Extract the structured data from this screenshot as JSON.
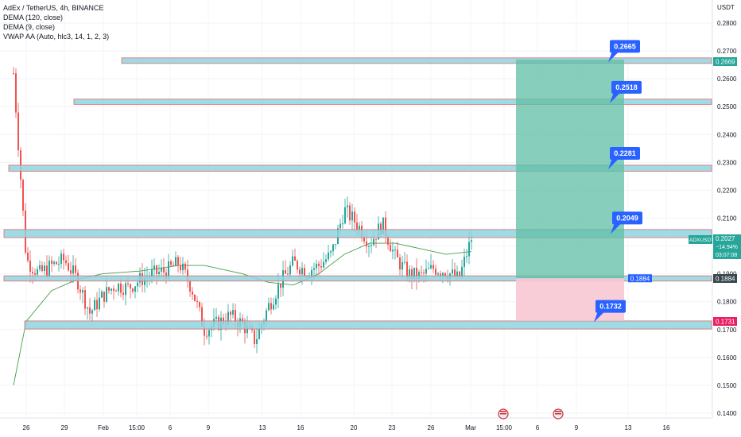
{
  "header": {
    "symbol_line": "AdEx / TetherUS, 4h, BINANCE",
    "indicators": [
      "DEMA (120, close)",
      "DEMA (9, close)",
      "VWAP AA (Auto, hlc3, 14, 1, 2, 3)"
    ]
  },
  "price_axis": {
    "currency": "USDT",
    "ticks": [
      "0.2800",
      "0.2700",
      "0.2600",
      "0.2500",
      "0.2400",
      "0.2300",
      "0.2200",
      "0.2100",
      "0.2000",
      "0.1900",
      "0.1800",
      "0.1700",
      "0.1600",
      "0.1500",
      "0.1400"
    ]
  },
  "time_axis": {
    "ticks": [
      "26",
      "29",
      "Feb",
      "15:00",
      "6",
      "9",
      "13",
      "16",
      "20",
      "23",
      "26",
      "Mar",
      "15:00",
      "6",
      "9",
      "13",
      "16"
    ]
  },
  "price_tags": {
    "symbol": "ADXUSDT",
    "current_price": "0.2027",
    "change": "−14.94%",
    "countdown": "03:07:08",
    "target": "0.2669",
    "support": "0.1884",
    "stop": "0.1731",
    "inner_label": "0.1884"
  },
  "level_labels": [
    "0.2665",
    "0.2518",
    "0.2281",
    "0.2049",
    "0.1732"
  ],
  "colors": {
    "zone_fill": "#8fd3df",
    "zone_border": "#e06a6a",
    "profit": "#5fbfa6",
    "loss": "#f8c8d4",
    "label_blue": "#2962ff",
    "bull": "#26a69a",
    "bear": "#ef5350",
    "dema": "#43a047"
  },
  "chart_data": {
    "type": "candlestick",
    "symbol": "ADXUSDT",
    "timeframe": "4h",
    "exchange": "BINANCE",
    "y_range": [
      0.1365,
      0.2855
    ],
    "levels": [
      {
        "label": "0.2665",
        "value": 0.2665,
        "band": [
          0.2655,
          0.2675
        ]
      },
      {
        "label": "0.2518",
        "value": 0.2518,
        "band": [
          0.2508,
          0.2527
        ]
      },
      {
        "label": "0.2281",
        "value": 0.2281,
        "band": [
          0.2268,
          0.229
        ]
      },
      {
        "label": "0.2049",
        "value": 0.2049,
        "band": [
          0.203,
          0.2059
        ]
      },
      {
        "label": "0.1884",
        "value": 0.1884,
        "band": [
          0.1874,
          0.1893
        ]
      },
      {
        "label": "0.1732",
        "value": 0.1732,
        "band": [
          0.1702,
          0.1731
        ]
      }
    ],
    "position": {
      "entry": 0.1884,
      "target": 0.2669,
      "stop": 0.1731
    },
    "price_path": [
      {
        "x": "25 Jan",
        "y": 0.262
      },
      {
        "x": "26 Jan",
        "y": 0.195
      },
      {
        "x": "27 Jan",
        "y": 0.19
      },
      {
        "x": "28 Jan",
        "y": 0.193
      },
      {
        "x": "29 Jan",
        "y": 0.195
      },
      {
        "x": "30 Jan",
        "y": 0.188
      },
      {
        "x": "31 Jan",
        "y": 0.176
      },
      {
        "x": "1 Feb",
        "y": 0.182
      },
      {
        "x": "2 Feb",
        "y": 0.186
      },
      {
        "x": "3 Feb",
        "y": 0.185
      },
      {
        "x": "4 Feb",
        "y": 0.188
      },
      {
        "x": "5 Feb",
        "y": 0.19
      },
      {
        "x": "6 Feb",
        "y": 0.191
      },
      {
        "x": "7 Feb",
        "y": 0.194
      },
      {
        "x": "8 Feb",
        "y": 0.185
      },
      {
        "x": "9 Feb",
        "y": 0.17
      },
      {
        "x": "10 Feb",
        "y": 0.172
      },
      {
        "x": "11 Feb",
        "y": 0.175
      },
      {
        "x": "12 Feb",
        "y": 0.172
      },
      {
        "x": "13 Feb",
        "y": 0.166
      },
      {
        "x": "14 Feb",
        "y": 0.178
      },
      {
        "x": "15 Feb",
        "y": 0.187
      },
      {
        "x": "16 Feb",
        "y": 0.194
      },
      {
        "x": "17 Feb",
        "y": 0.191
      },
      {
        "x": "18 Feb",
        "y": 0.193
      },
      {
        "x": "19 Feb",
        "y": 0.197
      },
      {
        "x": "20 Feb",
        "y": 0.213
      },
      {
        "x": "21 Feb",
        "y": 0.208
      },
      {
        "x": "22 Feb",
        "y": 0.201
      },
      {
        "x": "23 Feb",
        "y": 0.208
      },
      {
        "x": "24 Feb",
        "y": 0.196
      },
      {
        "x": "25 Feb",
        "y": 0.19
      },
      {
        "x": "26 Feb",
        "y": 0.189
      },
      {
        "x": "27 Feb",
        "y": 0.192
      },
      {
        "x": "28 Feb",
        "y": 0.191
      },
      {
        "x": "29 Feb",
        "y": 0.188
      },
      {
        "x": "1 Mar",
        "y": 0.2027
      }
    ],
    "dema_120": [
      {
        "x": "25 Jan",
        "y": 0.15
      },
      {
        "x": "26 Jan",
        "y": 0.173
      },
      {
        "x": "28 Jan",
        "y": 0.184
      },
      {
        "x": "30 Jan",
        "y": 0.188
      },
      {
        "x": "1 Feb",
        "y": 0.19
      },
      {
        "x": "4 Feb",
        "y": 0.191
      },
      {
        "x": "7 Feb",
        "y": 0.193
      },
      {
        "x": "9 Feb",
        "y": 0.193
      },
      {
        "x": "12 Feb",
        "y": 0.19
      },
      {
        "x": "14 Feb",
        "y": 0.187
      },
      {
        "x": "16 Feb",
        "y": 0.186
      },
      {
        "x": "18 Feb",
        "y": 0.19
      },
      {
        "x": "20 Feb",
        "y": 0.197
      },
      {
        "x": "22 Feb",
        "y": 0.201
      },
      {
        "x": "24 Feb",
        "y": 0.201
      },
      {
        "x": "26 Feb",
        "y": 0.199
      },
      {
        "x": "28 Feb",
        "y": 0.197
      },
      {
        "x": "1 Mar",
        "y": 0.198
      }
    ]
  }
}
